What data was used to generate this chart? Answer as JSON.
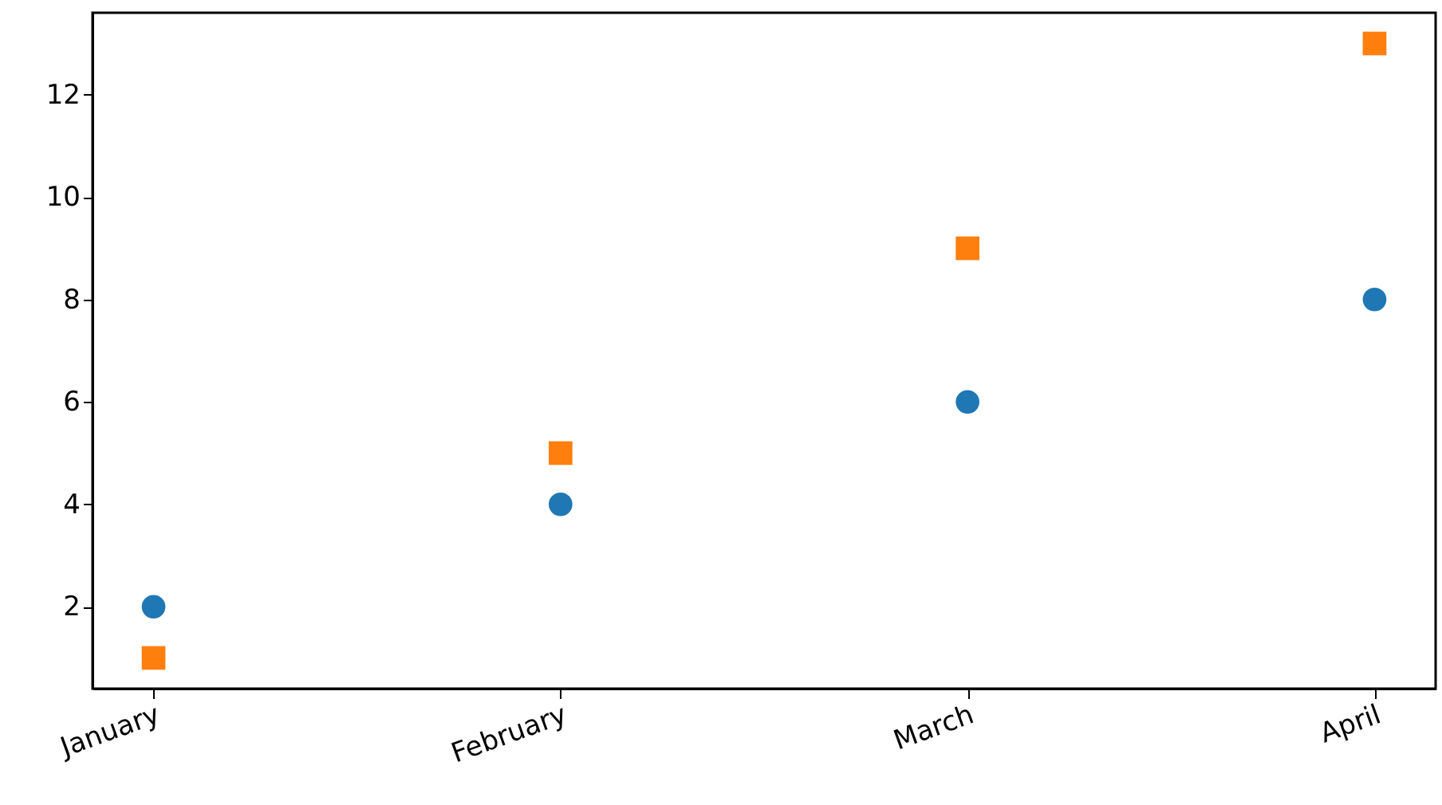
{
  "chart_data": {
    "type": "scatter",
    "categories": [
      "January",
      "February",
      "March",
      "April"
    ],
    "series": [
      {
        "color": "#1f77b4",
        "marker": "circle",
        "values": [
          2,
          4,
          6,
          8
        ]
      },
      {
        "color": "#ff7f0e",
        "marker": "square",
        "values": [
          1,
          5,
          9,
          13
        ]
      }
    ],
    "ylim": [
      0.4,
      13.6
    ],
    "yticks": [
      2,
      4,
      6,
      8,
      10,
      12
    ],
    "grid": false
  }
}
